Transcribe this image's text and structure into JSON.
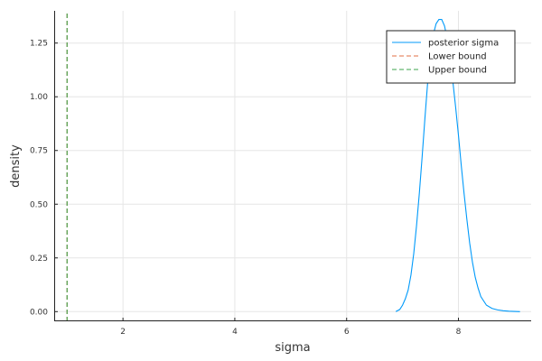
{
  "chart_data": {
    "type": "line",
    "title": "",
    "xlabel": "sigma",
    "ylabel": "density",
    "xlim": [
      0.77,
      9.3
    ],
    "ylim": [
      -0.045,
      1.4
    ],
    "grid": true,
    "legend_position": "top-right",
    "x_ticks": [
      {
        "value": 2,
        "label": "2"
      },
      {
        "value": 4,
        "label": "4"
      },
      {
        "value": 6,
        "label": "6"
      },
      {
        "value": 8,
        "label": "8"
      }
    ],
    "y_ticks": [
      {
        "value": 0.0,
        "label": "0.00"
      },
      {
        "value": 0.25,
        "label": "0.25"
      },
      {
        "value": 0.5,
        "label": "0.50"
      },
      {
        "value": 0.75,
        "label": "0.75"
      },
      {
        "value": 1.0,
        "label": "1.00"
      },
      {
        "value": 1.25,
        "label": "1.25"
      }
    ],
    "series": [
      {
        "name": "posterior sigma",
        "color": "#009AFA",
        "style": "solid",
        "x": [
          6.88,
          6.95,
          7.0,
          7.05,
          7.1,
          7.15,
          7.2,
          7.25,
          7.3,
          7.35,
          7.4,
          7.45,
          7.5,
          7.55,
          7.6,
          7.65,
          7.7,
          7.75,
          7.8,
          7.85,
          7.9,
          7.95,
          8.0,
          8.05,
          8.1,
          8.15,
          8.2,
          8.25,
          8.3,
          8.35,
          8.4,
          8.5,
          8.6,
          8.7,
          8.8,
          8.9,
          9.0,
          9.1
        ],
        "y": [
          0.0,
          0.01,
          0.03,
          0.06,
          0.1,
          0.17,
          0.27,
          0.4,
          0.55,
          0.72,
          0.9,
          1.07,
          1.2,
          1.29,
          1.34,
          1.36,
          1.36,
          1.33,
          1.27,
          1.18,
          1.07,
          0.95,
          0.82,
          0.68,
          0.55,
          0.43,
          0.32,
          0.23,
          0.16,
          0.11,
          0.07,
          0.03,
          0.015,
          0.008,
          0.004,
          0.002,
          0.001,
          0.0
        ]
      },
      {
        "name": "Lower bound",
        "color": "#E26F46",
        "style": "dashed",
        "x": [
          1.0,
          1.0
        ],
        "y": [
          -0.045,
          1.4
        ]
      },
      {
        "name": "Upper bound",
        "color": "#3EA44E",
        "style": "dashed",
        "x": [
          1.0,
          1.0
        ],
        "y": [
          -0.045,
          1.4
        ]
      }
    ]
  }
}
